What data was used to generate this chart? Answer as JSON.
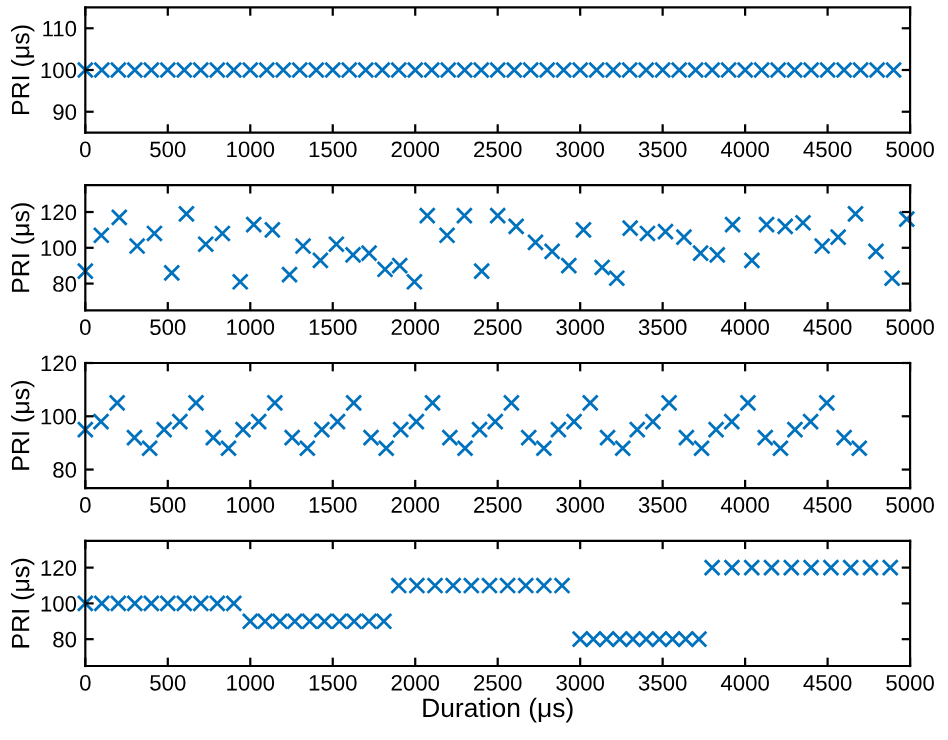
{
  "chart_data": [
    {
      "type": "scatter",
      "ylabel": "PRI (μs)",
      "marker": "cross",
      "grid": false,
      "xlim": [
        0,
        5000
      ],
      "xticks": [
        0,
        500,
        1000,
        1500,
        2000,
        2500,
        3000,
        3500,
        4000,
        4500,
        5000
      ],
      "ylim": [
        85,
        115
      ],
      "yticks": [
        90,
        100,
        110
      ],
      "series": [
        {
          "color": "#0072bd",
          "x": [
            0,
            100,
            200,
            300,
            400,
            500,
            600,
            700,
            800,
            900,
            1000,
            1100,
            1200,
            1300,
            1400,
            1500,
            1600,
            1700,
            1800,
            1900,
            2000,
            2100,
            2200,
            2300,
            2400,
            2500,
            2600,
            2700,
            2800,
            2900,
            3000,
            3100,
            3200,
            3300,
            3400,
            3500,
            3600,
            3700,
            3800,
            3900,
            4000,
            4100,
            4200,
            4300,
            4400,
            4500,
            4600,
            4700,
            4800,
            4900
          ],
          "values": [
            100,
            100,
            100,
            100,
            100,
            100,
            100,
            100,
            100,
            100,
            100,
            100,
            100,
            100,
            100,
            100,
            100,
            100,
            100,
            100,
            100,
            100,
            100,
            100,
            100,
            100,
            100,
            100,
            100,
            100,
            100,
            100,
            100,
            100,
            100,
            100,
            100,
            100,
            100,
            100,
            100,
            100,
            100,
            100,
            100,
            100,
            100,
            100,
            100,
            100
          ]
        }
      ]
    },
    {
      "type": "scatter",
      "ylabel": "PRI (μs)",
      "marker": "cross",
      "grid": false,
      "xlim": [
        0,
        5000
      ],
      "xticks": [
        0,
        500,
        1000,
        1500,
        2000,
        2500,
        3000,
        3500,
        4000,
        4500,
        5000
      ],
      "ylim": [
        65,
        135
      ],
      "yticks": [
        80,
        100,
        120
      ],
      "series": [
        {
          "color": "#0072bd",
          "x": [
            0,
            97,
            206,
            314,
            419,
            524,
            613,
            730,
            831,
            939,
            1021,
            1134,
            1238,
            1320,
            1425,
            1522,
            1623,
            1720,
            1817,
            1906,
            1995,
            2073,
            2193,
            2298,
            2403,
            2500,
            2612,
            2729,
            2830,
            2931,
            3020,
            3133,
            3222,
            3303,
            3408,
            3517,
            3629,
            3730,
            3831,
            3924,
            4041,
            4130,
            4243,
            4351,
            4467,
            4564,
            4669,
            4793,
            4891,
            4980
          ],
          "values": [
            87,
            107,
            117,
            101,
            108,
            86,
            119,
            102,
            108,
            81,
            113,
            110,
            85,
            101,
            93,
            102,
            96,
            97,
            88,
            90,
            81,
            118,
            107,
            118,
            87,
            118,
            112,
            103,
            98,
            90,
            110,
            89,
            83,
            111,
            108,
            109,
            106,
            97,
            96,
            113,
            93,
            113,
            112,
            114,
            101,
            106,
            119,
            98,
            83,
            116
          ]
        }
      ]
    },
    {
      "type": "scatter",
      "ylabel": "PRI (μs)",
      "marker": "cross",
      "grid": false,
      "xlim": [
        0,
        5000
      ],
      "xticks": [
        0,
        500,
        1000,
        1500,
        2000,
        2500,
        3000,
        3500,
        4000,
        4500,
        5000
      ],
      "ylim": [
        73,
        120
      ],
      "yticks": [
        80,
        100,
        120
      ],
      "series": [
        {
          "color": "#0072bd",
          "x": [
            0,
            95,
            193,
            298,
            390,
            478,
            573,
            671,
            776,
            868,
            956,
            1051,
            1149,
            1254,
            1346,
            1434,
            1529,
            1627,
            1732,
            1824,
            1912,
            2007,
            2105,
            2210,
            2302,
            2390,
            2485,
            2583,
            2688,
            2780,
            2868,
            2963,
            3061,
            3166,
            3258,
            3346,
            3441,
            3539,
            3644,
            3736,
            3824,
            3919,
            4017,
            4122,
            4214,
            4302,
            4397,
            4495,
            4600,
            4692
          ],
          "values": [
            95,
            98,
            105,
            92,
            88,
            95,
            98,
            105,
            92,
            88,
            95,
            98,
            105,
            92,
            88,
            95,
            98,
            105,
            92,
            88,
            95,
            98,
            105,
            92,
            88,
            95,
            98,
            105,
            92,
            88,
            95,
            98,
            105,
            92,
            88,
            95,
            98,
            105,
            92,
            88,
            95,
            98,
            105,
            92,
            88,
            95,
            98,
            105,
            92,
            88
          ]
        }
      ]
    },
    {
      "type": "scatter",
      "ylabel": "PRI (μs)",
      "xlabel": "Duration (μs)",
      "marker": "cross",
      "grid": false,
      "xlim": [
        0,
        5000
      ],
      "xticks": [
        0,
        500,
        1000,
        1500,
        2000,
        2500,
        3000,
        3500,
        4000,
        4500,
        5000
      ],
      "ylim": [
        65,
        135
      ],
      "yticks": [
        80,
        100,
        120
      ],
      "series": [
        {
          "color": "#0072bd",
          "x": [
            0,
            100,
            200,
            300,
            400,
            500,
            600,
            700,
            800,
            900,
            1000,
            1090,
            1180,
            1270,
            1360,
            1450,
            1540,
            1630,
            1720,
            1810,
            1900,
            2010,
            2120,
            2230,
            2340,
            2450,
            2560,
            2670,
            2780,
            2890,
            3000,
            3080,
            3160,
            3240,
            3320,
            3400,
            3480,
            3560,
            3640,
            3720,
            3800,
            3920,
            4040,
            4160,
            4280,
            4400,
            4520,
            4640,
            4760,
            4880
          ],
          "values": [
            100,
            100,
            100,
            100,
            100,
            100,
            100,
            100,
            100,
            100,
            90,
            90,
            90,
            90,
            90,
            90,
            90,
            90,
            90,
            90,
            110,
            110,
            110,
            110,
            110,
            110,
            110,
            110,
            110,
            110,
            80,
            80,
            80,
            80,
            80,
            80,
            80,
            80,
            80,
            80,
            120,
            120,
            120,
            120,
            120,
            120,
            120,
            120,
            120,
            120
          ]
        }
      ]
    }
  ]
}
